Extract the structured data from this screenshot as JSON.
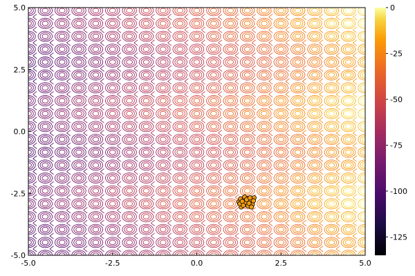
{
  "chart_data": {
    "type": "contour",
    "title": "",
    "xlabel": "",
    "ylabel": "",
    "xlim": [
      -5.0,
      5.0
    ],
    "ylim": [
      -5.0,
      5.0
    ],
    "x_ticks": [
      -5.0,
      -2.5,
      0.0,
      2.5,
      5.0
    ],
    "x_tick_labels": [
      "-5.0",
      "-2.5",
      "0.0",
      "2.5",
      "5.0"
    ],
    "y_ticks": [
      -5.0,
      -2.5,
      0.0,
      2.5,
      5.0
    ],
    "y_tick_labels": [
      "-5.0",
      "-2.5",
      "0.0",
      "2.5",
      "5.0"
    ],
    "grid": false,
    "legend": "none",
    "colorbar": {
      "colormap": "inferno",
      "range": [
        -135,
        0
      ],
      "ticks": [
        0,
        -25,
        -50,
        -75,
        -100,
        -125
      ],
      "tick_labels": [
        "0",
        "-25",
        "-50",
        "-75",
        "-100",
        "-125"
      ]
    },
    "contour_grid": {
      "x_period": 0.5,
      "y_period": 0.52
    },
    "scatter": {
      "marker_color": "#f39c12",
      "marker_edge": "#000000",
      "points": [
        {
          "x": 1.25,
          "y": -2.85
        },
        {
          "x": 1.3,
          "y": -2.72
        },
        {
          "x": 1.35,
          "y": -2.95
        },
        {
          "x": 1.4,
          "y": -2.78
        },
        {
          "x": 1.45,
          "y": -2.88
        },
        {
          "x": 1.5,
          "y": -2.7
        },
        {
          "x": 1.52,
          "y": -3.0
        },
        {
          "x": 1.6,
          "y": -2.82
        },
        {
          "x": 1.65,
          "y": -2.95
        },
        {
          "x": 1.7,
          "y": -2.68
        },
        {
          "x": 1.32,
          "y": -3.05
        },
        {
          "x": 1.42,
          "y": -2.65
        },
        {
          "x": 1.55,
          "y": -2.9
        },
        {
          "x": 1.28,
          "y": -2.92
        },
        {
          "x": 1.62,
          "y": -3.05
        },
        {
          "x": 1.38,
          "y": -2.98
        },
        {
          "x": 1.48,
          "y": -2.75
        },
        {
          "x": 1.58,
          "y": -2.68
        },
        {
          "x": 1.68,
          "y": -2.8
        },
        {
          "x": 1.35,
          "y": -2.82
        }
      ]
    }
  }
}
